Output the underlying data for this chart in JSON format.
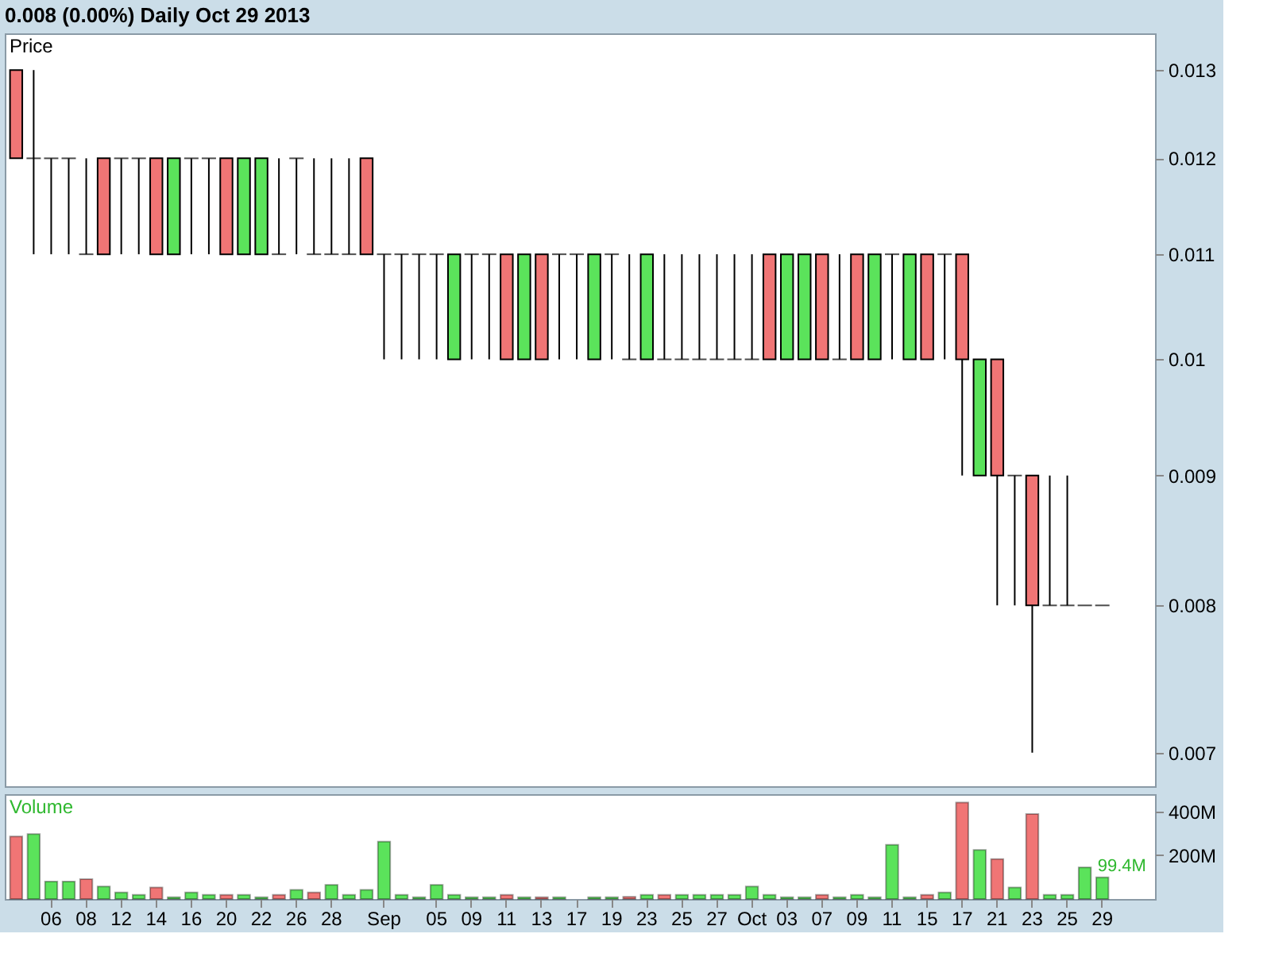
{
  "chart_data": [
    {
      "type": "candlestick",
      "title": "0.008 (0.00%)   Daily  Oct 29 2013",
      "ylabel": "Price",
      "categories": [
        null,
        null,
        null,
        null,
        null,
        null,
        null,
        null,
        null,
        null,
        null,
        null,
        null,
        null,
        null,
        null,
        null,
        null,
        null,
        null,
        null,
        null,
        null,
        null,
        null,
        null,
        null,
        null,
        null,
        null,
        null,
        null,
        null,
        null,
        null,
        null,
        null,
        null,
        null,
        null,
        null,
        null,
        null,
        null,
        null,
        null,
        null,
        null,
        null,
        null,
        null,
        null,
        null,
        null,
        null,
        null,
        null,
        null,
        null,
        null,
        null,
        null,
        null
      ],
      "ohlc": [
        [
          0.013,
          0.013,
          0.012,
          0.012
        ],
        [
          0.012,
          0.013,
          0.011,
          0.012
        ],
        [
          0.012,
          0.012,
          0.011,
          0.012
        ],
        [
          0.012,
          0.012,
          0.011,
          0.012
        ],
        [
          0.011,
          0.012,
          0.011,
          0.011
        ],
        [
          0.012,
          0.012,
          0.011,
          0.011
        ],
        [
          0.012,
          0.012,
          0.011,
          0.012
        ],
        [
          0.012,
          0.012,
          0.011,
          0.012
        ],
        [
          0.012,
          0.012,
          0.011,
          0.011
        ],
        [
          0.011,
          0.012,
          0.011,
          0.012
        ],
        [
          0.012,
          0.012,
          0.011,
          0.012
        ],
        [
          0.012,
          0.012,
          0.011,
          0.012
        ],
        [
          0.012,
          0.012,
          0.011,
          0.011
        ],
        [
          0.011,
          0.012,
          0.011,
          0.012
        ],
        [
          0.011,
          0.012,
          0.011,
          0.012
        ],
        [
          0.011,
          0.012,
          0.011,
          0.011
        ],
        [
          0.012,
          0.012,
          0.011,
          0.012
        ],
        [
          0.011,
          0.012,
          0.011,
          0.011
        ],
        [
          0.011,
          0.012,
          0.011,
          0.011
        ],
        [
          0.011,
          0.012,
          0.011,
          0.011
        ],
        [
          0.012,
          0.012,
          0.011,
          0.011
        ],
        [
          0.011,
          0.011,
          0.01,
          0.011
        ],
        [
          0.011,
          0.011,
          0.01,
          0.011
        ],
        [
          0.011,
          0.011,
          0.01,
          0.011
        ],
        [
          0.011,
          0.011,
          0.01,
          0.011
        ],
        [
          0.01,
          0.011,
          0.01,
          0.011
        ],
        [
          0.011,
          0.011,
          0.01,
          0.011
        ],
        [
          0.011,
          0.011,
          0.01,
          0.011
        ],
        [
          0.011,
          0.011,
          0.01,
          0.01
        ],
        [
          0.01,
          0.011,
          0.01,
          0.011
        ],
        [
          0.011,
          0.011,
          0.01,
          0.01
        ],
        [
          0.011,
          0.011,
          0.01,
          0.011
        ],
        [
          0.011,
          0.011,
          0.01,
          0.011
        ],
        [
          0.01,
          0.011,
          0.01,
          0.011
        ],
        [
          0.011,
          0.011,
          0.01,
          0.011
        ],
        [
          0.01,
          0.011,
          0.01,
          0.01
        ],
        [
          0.01,
          0.011,
          0.01,
          0.011
        ],
        [
          0.01,
          0.011,
          0.01,
          0.01
        ],
        [
          0.01,
          0.011,
          0.01,
          0.01
        ],
        [
          0.01,
          0.011,
          0.01,
          0.01
        ],
        [
          0.01,
          0.011,
          0.01,
          0.01
        ],
        [
          0.01,
          0.011,
          0.01,
          0.01
        ],
        [
          0.01,
          0.011,
          0.01,
          0.01
        ],
        [
          0.011,
          0.011,
          0.01,
          0.01
        ],
        [
          0.01,
          0.011,
          0.01,
          0.011
        ],
        [
          0.01,
          0.011,
          0.01,
          0.011
        ],
        [
          0.011,
          0.011,
          0.01,
          0.01
        ],
        [
          0.01,
          0.011,
          0.01,
          0.01
        ],
        [
          0.011,
          0.011,
          0.01,
          0.01
        ],
        [
          0.01,
          0.011,
          0.01,
          0.011
        ],
        [
          0.011,
          0.011,
          0.01,
          0.011
        ],
        [
          0.01,
          0.011,
          0.01,
          0.011
        ],
        [
          0.011,
          0.011,
          0.01,
          0.01
        ],
        [
          0.011,
          0.011,
          0.01,
          0.011
        ],
        [
          0.011,
          0.011,
          0.009,
          0.01
        ],
        [
          0.009,
          0.01,
          0.009,
          0.01
        ],
        [
          0.01,
          0.01,
          0.008,
          0.009
        ],
        [
          0.009,
          0.009,
          0.008,
          0.009
        ],
        [
          0.009,
          0.009,
          0.007,
          0.008
        ],
        [
          0.008,
          0.009,
          0.008,
          0.008
        ],
        [
          0.008,
          0.009,
          0.008,
          0.008
        ],
        [
          0.008,
          0.008,
          0.008,
          0.008
        ],
        [
          0.008,
          0.008,
          0.008,
          0.008
        ]
      ],
      "colors": [
        "#f07575",
        "#000000",
        "#000000",
        "#000000",
        "#000000",
        "#f07575",
        "#000000",
        "#000000",
        "#f07575",
        "#5be35b",
        "#000000",
        "#000000",
        "#f07575",
        "#5be35b",
        "#5be35b",
        "#000000",
        "#000000",
        "#000000",
        "#000000",
        "#000000",
        "#f07575",
        "#000000",
        "#000000",
        "#000000",
        "#000000",
        "#5be35b",
        "#000000",
        "#000000",
        "#f07575",
        "#5be35b",
        "#f07575",
        "#000000",
        "#000000",
        "#5be35b",
        "#000000",
        "#000000",
        "#5be35b",
        "#000000",
        "#000000",
        "#000000",
        "#000000",
        "#000000",
        "#000000",
        "#f07575",
        "#5be35b",
        "#5be35b",
        "#f07575",
        "#000000",
        "#f07575",
        "#5be35b",
        "#000000",
        "#5be35b",
        "#f07575",
        "#000000",
        "#f07575",
        "#5be35b",
        "#f07575",
        "#000000",
        "#f07575",
        "#000000",
        "#000000",
        "#000000",
        "#000000"
      ],
      "log": "y",
      "ylim": [
        0.00679,
        0.01344
      ],
      "yticks": [
        0.013,
        0.012,
        0.011,
        0.01,
        0.009,
        0.008,
        0.007
      ]
    },
    {
      "type": "bar",
      "ylabel": "Volume",
      "categories": [
        null,
        null,
        "06",
        null,
        "08",
        null,
        "12",
        null,
        "14",
        null,
        "16",
        null,
        "20",
        null,
        "22",
        null,
        "26",
        null,
        "28",
        null,
        null,
        "Sep",
        null,
        null,
        "05",
        null,
        "09",
        null,
        "11",
        null,
        "13",
        null,
        "17",
        null,
        "19",
        null,
        "23",
        null,
        "25",
        null,
        "27",
        null,
        "Oct",
        null,
        "03",
        null,
        "07",
        null,
        "09",
        null,
        "11",
        null,
        "15",
        null,
        "17",
        null,
        "21",
        null,
        "23",
        null,
        "25",
        null,
        "29"
      ],
      "values": [
        286,
        297,
        80,
        80,
        91,
        57,
        30,
        19,
        53,
        8,
        30,
        19,
        19,
        19,
        8,
        19,
        42,
        30,
        65,
        19,
        42,
        263,
        19,
        8,
        65,
        19,
        8,
        8,
        19,
        8,
        8,
        8,
        null,
        8,
        8,
        10,
        19,
        19,
        19,
        19,
        19,
        19,
        57,
        19,
        8,
        8,
        19,
        8,
        19,
        8,
        248,
        8,
        19,
        30,
        442,
        225,
        183,
        53,
        389,
        19,
        19,
        145,
        99.4
      ],
      "colors": [
        "#f07575",
        "#5be35b",
        "#5be35b",
        "#5be35b",
        "#f07575",
        "#5be35b",
        "#5be35b",
        "#5be35b",
        "#f07575",
        "#5be35b",
        "#5be35b",
        "#5be35b",
        "#f07575",
        "#5be35b",
        "#5be35b",
        "#f07575",
        "#5be35b",
        "#f07575",
        "#5be35b",
        "#5be35b",
        "#5be35b",
        "#5be35b",
        "#5be35b",
        "#5be35b",
        "#5be35b",
        "#5be35b",
        "#5be35b",
        "#5be35b",
        "#f07575",
        "#5be35b",
        "#f07575",
        "#5be35b",
        "#5be35b",
        "#5be35b",
        "#5be35b",
        "#f07575",
        "#5be35b",
        "#f07575",
        "#5be35b",
        "#5be35b",
        "#5be35b",
        "#5be35b",
        "#5be35b",
        "#5be35b",
        "#5be35b",
        "#5be35b",
        "#f07575",
        "#5be35b",
        "#5be35b",
        "#5be35b",
        "#5be35b",
        "#5be35b",
        "#f07575",
        "#5be35b",
        "#f07575",
        "#5be35b",
        "#f07575",
        "#5be35b",
        "#f07575",
        "#5be35b",
        "#5be35b",
        "#5be35b",
        "#5be35b"
      ],
      "value_labels": [
        null,
        null,
        null,
        null,
        null,
        null,
        null,
        null,
        null,
        null,
        null,
        null,
        null,
        null,
        null,
        null,
        null,
        null,
        null,
        null,
        null,
        null,
        null,
        null,
        null,
        null,
        null,
        null,
        null,
        null,
        null,
        null,
        null,
        null,
        null,
        null,
        null,
        null,
        null,
        null,
        null,
        null,
        null,
        null,
        null,
        null,
        null,
        null,
        null,
        null,
        null,
        null,
        null,
        null,
        null,
        null,
        null,
        null,
        null,
        null,
        null,
        null,
        "99.4M"
      ],
      "ylim": [
        0,
        480
      ],
      "yticks": [
        {
          "value": 400,
          "label": "400M"
        },
        {
          "value": 200,
          "label": "200M"
        }
      ]
    }
  ]
}
